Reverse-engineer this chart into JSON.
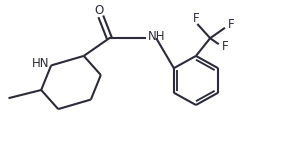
{
  "bg_color": "#ffffff",
  "line_color": "#2b2b3b",
  "line_width": 1.5,
  "font_size": 8.5,
  "xlim": [
    0,
    10
  ],
  "ylim": [
    0,
    5.5
  ]
}
